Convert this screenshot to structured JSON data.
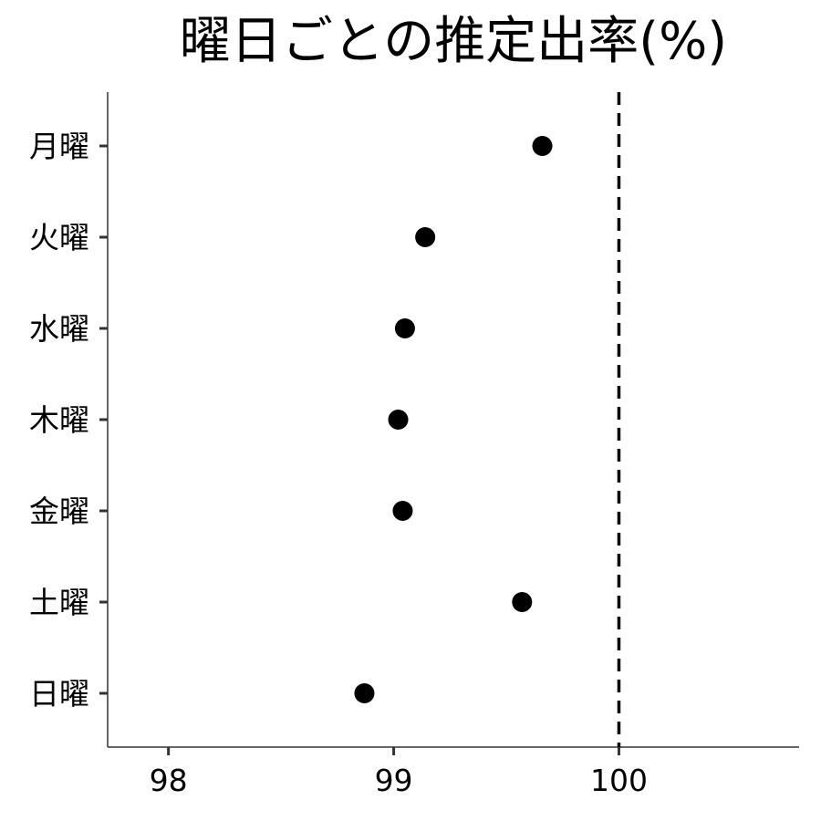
{
  "chart_data": {
    "type": "scatter",
    "title": "曜日ごとの推定出率(%)",
    "xlabel": "",
    "ylabel": "",
    "xlim": [
      97.73,
      100.8
    ],
    "x_ticks": [
      98,
      99,
      100
    ],
    "x_tick_labels": [
      "98",
      "99",
      "100"
    ],
    "categories": [
      "月曜",
      "火曜",
      "水曜",
      "木曜",
      "金曜",
      "土曜",
      "日曜"
    ],
    "values": [
      99.66,
      99.14,
      99.05,
      99.02,
      99.04,
      99.57,
      98.87
    ],
    "reference_line": {
      "x": 100,
      "style": "dashed"
    },
    "grid": false,
    "legend": "none",
    "colors": {
      "point": "#000000",
      "axis": "#333333",
      "reference": "#000000"
    }
  }
}
